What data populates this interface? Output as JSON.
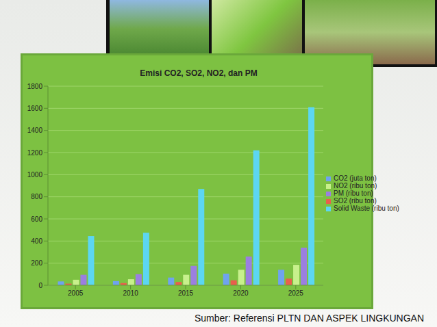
{
  "source": "Sumber: Referensi PLTN DAN ASPEK LINGKUNGAN",
  "chart_data": {
    "type": "bar",
    "title": "Emisi CO2, SO2, NO2, dan PM",
    "categories": [
      "2005",
      "2010",
      "2015",
      "2020",
      "2025"
    ],
    "series": [
      {
        "name": "CO2 (juta ton)",
        "color": "#6fa3ee",
        "values": [
          35,
          38,
          70,
          105,
          140
        ]
      },
      {
        "name": "SO2 (ribu ton)",
        "color": "#e8604c",
        "values": [
          15,
          20,
          30,
          45,
          60
        ]
      },
      {
        "name": "NO2 (ribu ton)",
        "color": "#c8f08c",
        "values": [
          50,
          55,
          95,
          140,
          185
        ]
      },
      {
        "name": "PM (ribu ton)",
        "color": "#9b7fe0",
        "values": [
          95,
          100,
          175,
          260,
          340
        ]
      },
      {
        "name": "Solid Waste (ribu ton)",
        "color": "#5cd6f2",
        "values": [
          445,
          475,
          870,
          1220,
          1610
        ]
      }
    ],
    "ylim": [
      0,
      1800
    ],
    "yticks": [
      0,
      200,
      400,
      600,
      800,
      1000,
      1200,
      1400,
      1600,
      1800
    ],
    "grid": true,
    "legend": "right"
  }
}
